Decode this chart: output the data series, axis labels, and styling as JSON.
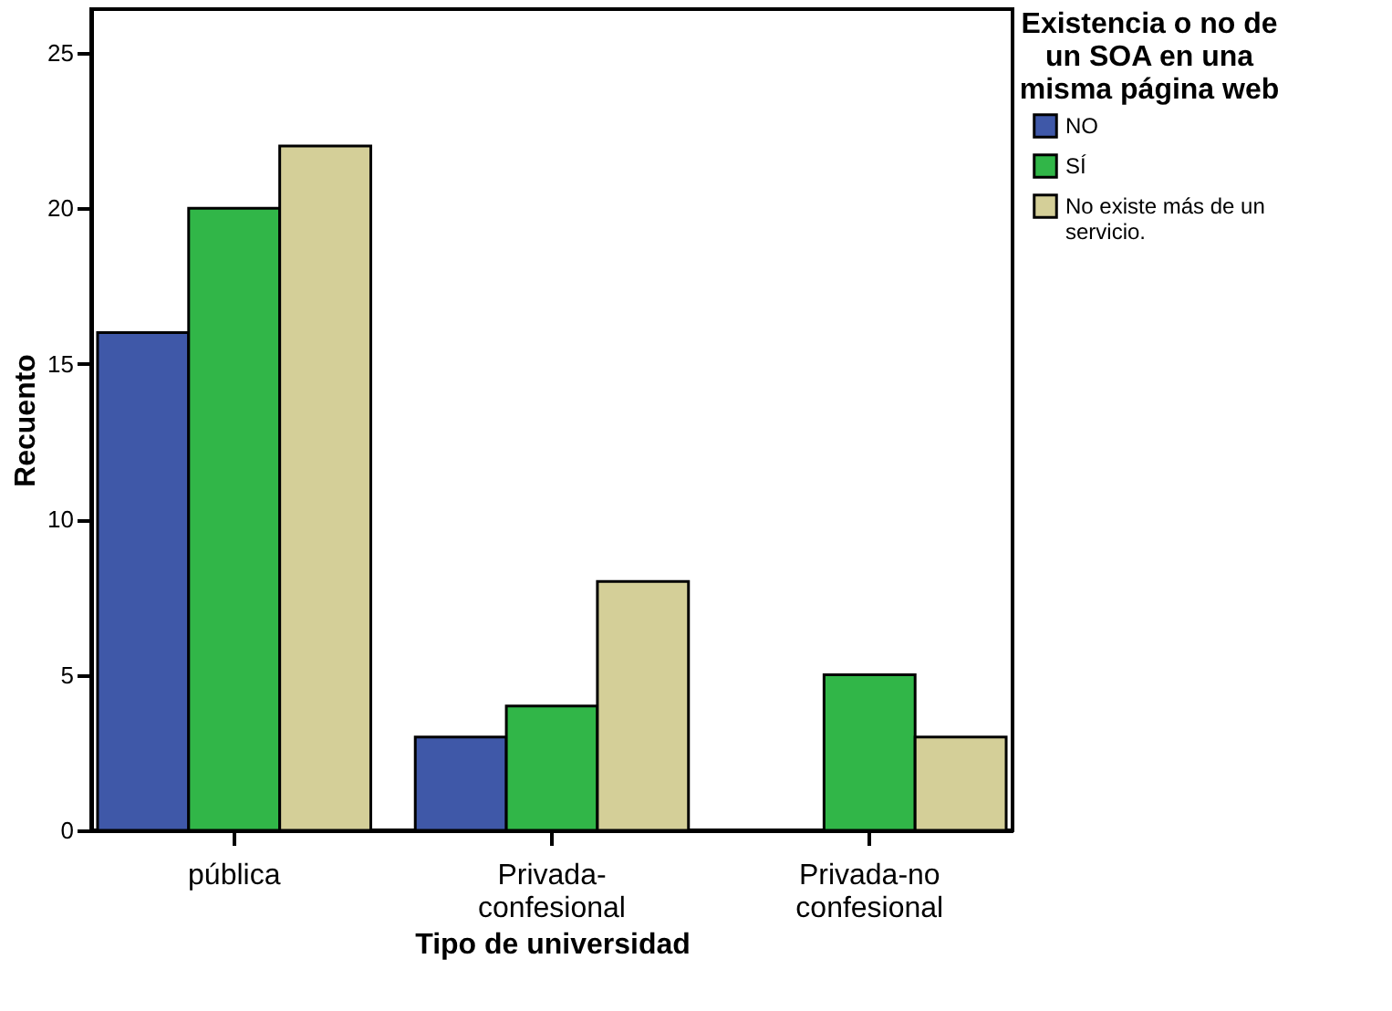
{
  "chart_data": {
    "type": "bar",
    "categories": [
      "pública",
      "Privada-confesional",
      "Privada-no confesional"
    ],
    "series": [
      {
        "name": "NO",
        "color": "#3f58a8",
        "values": [
          16,
          3,
          0
        ]
      },
      {
        "name": "SÍ",
        "color": "#31b648",
        "values": [
          20,
          4,
          5
        ]
      },
      {
        "name": "No existe más de un servicio.",
        "color": "#d4cf98",
        "values": [
          22,
          8,
          3
        ]
      }
    ],
    "xlabel": "Tipo de universidad",
    "ylabel": "Recuento",
    "legend_title": "Existencia o no de un SOA en una misma página web",
    "ylim": [
      0,
      26.4
    ],
    "yticks": [
      0,
      5,
      10,
      15,
      20,
      25
    ],
    "grid": false,
    "legend": "right"
  }
}
